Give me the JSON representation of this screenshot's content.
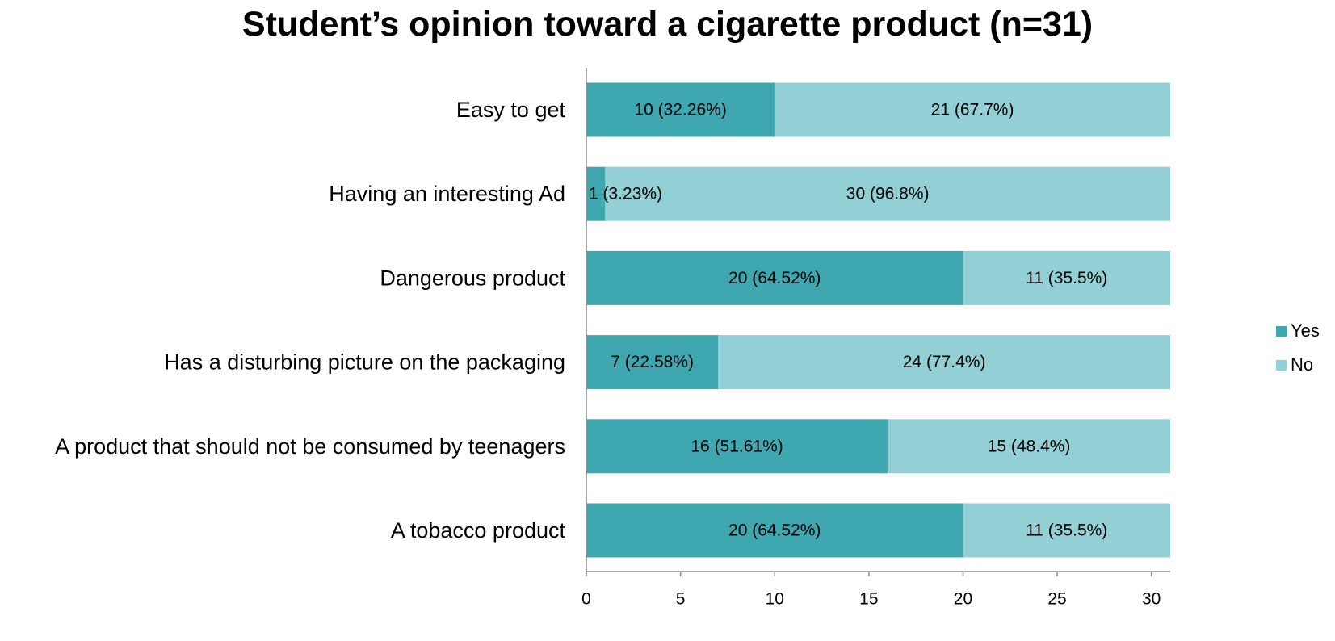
{
  "chart_data": {
    "type": "bar",
    "orientation": "horizontal",
    "stacked": true,
    "title": "Student’s opinion toward a cigarette product (n=31)",
    "categories": [
      "Easy to get",
      "Having an interesting Ad",
      "Dangerous product",
      "Has a disturbing picture on the packaging",
      "A product that should not be consumed by teenagers",
      "A tobacco product"
    ],
    "series": [
      {
        "name": "Yes",
        "color": "#3fa7b0",
        "values": [
          10,
          1,
          20,
          7,
          16,
          20
        ],
        "labels": [
          "10 (32.26%)",
          "1 (3.23%)",
          "20 (64.52%)",
          "7 (22.58%)",
          "16 (51.61%)",
          "20 (64.52%)"
        ]
      },
      {
        "name": "No",
        "color": "#93d0d6",
        "values": [
          21,
          30,
          11,
          24,
          15,
          11
        ],
        "labels": [
          "21 (67.7%)",
          "30 (96.8%)",
          "11 (35.5%)",
          "24 (77.4%)",
          "15 (48.4%)",
          "11 (35.5%)"
        ]
      }
    ],
    "xlim": [
      0,
      31
    ],
    "xticks": [
      0,
      5,
      10,
      15,
      20,
      25,
      30
    ],
    "legend_position": "right",
    "grid": false
  }
}
